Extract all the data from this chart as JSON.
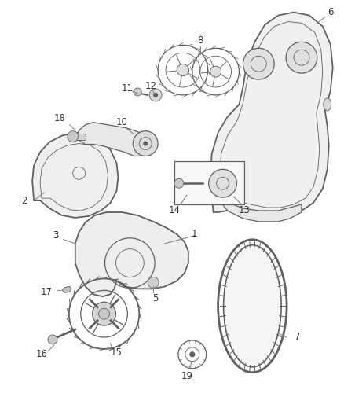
{
  "bg_color": "#ffffff",
  "lc": "#606060",
  "lc_light": "#888888",
  "label_color": "#333333",
  "figsize": [
    4.38,
    5.33
  ],
  "dpi": 100
}
